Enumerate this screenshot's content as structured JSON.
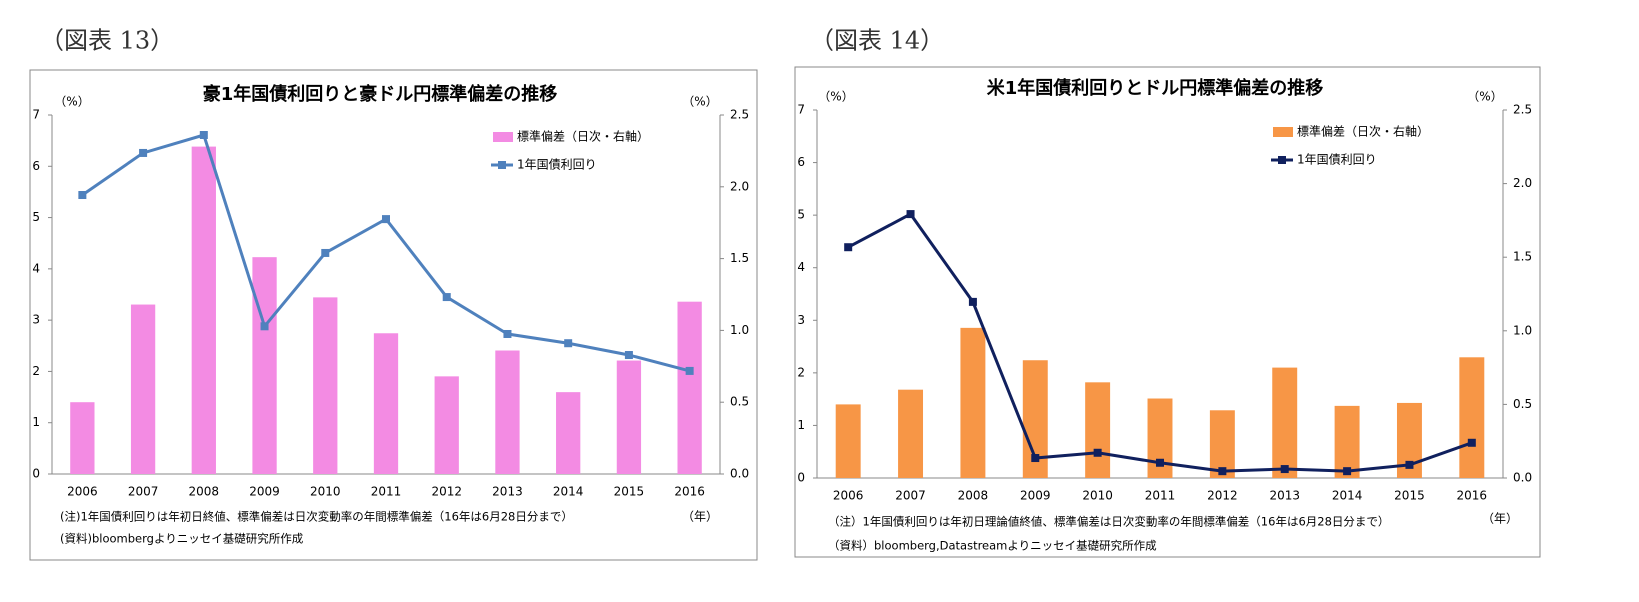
{
  "chart_data": [
    {
      "type": "bar-line",
      "figure_label": "（図表 13）",
      "title": "豪1年国債利回りと豪ドル円標準偏差の推移",
      "y_label": "（%）",
      "y2_label": "（%）",
      "x_label": "（年）",
      "notes": [
        "(注)1年国債利回りは年初日終値、標準偏差は日次変動率の年間標準偏差（16年は6月28日分まで）",
        "(資料)bloombergよりニッセイ基礎研究所作成"
      ],
      "categories": [
        "2006",
        "2007",
        "2008",
        "2009",
        "2010",
        "2011",
        "2012",
        "2013",
        "2014",
        "2015",
        "2016"
      ],
      "series": [
        {
          "name": "標準偏差（日次・右軸）",
          "type": "bar",
          "axis": "y2",
          "color": "#f38be3",
          "values": [
            0.5,
            1.18,
            2.28,
            1.51,
            1.23,
            0.98,
            0.68,
            0.86,
            0.57,
            0.79,
            1.2
          ]
        },
        {
          "name": "1年国債利回り",
          "type": "line",
          "axis": "y",
          "color": "#4f81bd",
          "values": [
            5.44,
            6.26,
            6.61,
            2.88,
            4.31,
            4.97,
            3.45,
            2.73,
            2.55,
            2.32,
            2.01
          ]
        }
      ],
      "ylim": [
        0,
        7
      ],
      "yticks": [
        0,
        1,
        2,
        3,
        4,
        5,
        6,
        7
      ],
      "y2lim": [
        0,
        2.5
      ],
      "y2ticks": [
        {
          "value": 0,
          "label": "0.0"
        },
        0.5,
        {
          "value": 1,
          "label": "1.0"
        },
        1.5,
        {
          "value": 2,
          "label": "2.0"
        },
        2.5
      ]
    },
    {
      "type": "bar-line",
      "figure_label": "（図表 14）",
      "title": "米1年国債利回りとドル円標準偏差の推移",
      "y_label": "（%）",
      "y2_label": "（%）",
      "x_label": "（年）",
      "notes": [
        "（注）1年国債利回りは年初日理論値終値、標準偏差は日次変動率の年間標準偏差（16年は6月28日分まで）",
        "（資料）bloomberg,Datastreamよりニッセイ基礎研究所作成"
      ],
      "categories": [
        "2006",
        "2007",
        "2008",
        "2009",
        "2010",
        "2011",
        "2012",
        "2013",
        "2014",
        "2015",
        "2016"
      ],
      "series": [
        {
          "name": "標準偏差（日次・右軸）",
          "type": "bar",
          "axis": "y2",
          "color": "#f79646",
          "values": [
            0.5,
            0.6,
            1.02,
            0.8,
            0.65,
            0.54,
            0.46,
            0.75,
            0.49,
            0.51,
            0.82
          ]
        },
        {
          "name": "1年国債利回り",
          "type": "line",
          "axis": "y",
          "color": "#10205e",
          "values": [
            4.39,
            5.02,
            3.35,
            0.38,
            0.48,
            0.29,
            0.13,
            0.17,
            0.13,
            0.25,
            0.67
          ]
        }
      ],
      "ylim": [
        0,
        7
      ],
      "yticks": [
        0,
        1,
        2,
        3,
        4,
        5,
        6,
        7
      ],
      "y2lim": [
        0,
        2.5
      ],
      "y2ticks": [
        {
          "value": 0,
          "label": "0.0"
        },
        0.5,
        {
          "value": 1,
          "label": "1.0"
        },
        1.5,
        {
          "value": 2,
          "label": "2.0"
        },
        2.5
      ]
    }
  ]
}
